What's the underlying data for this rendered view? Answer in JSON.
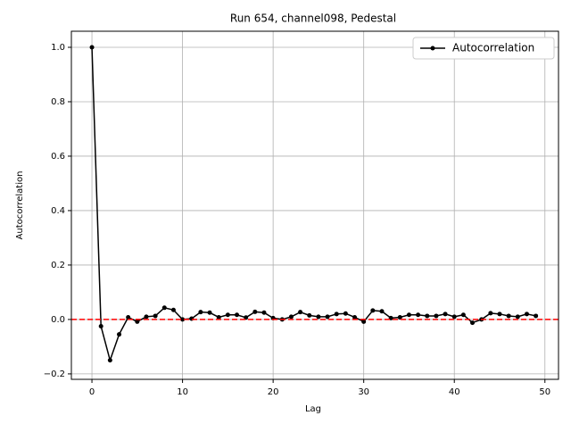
{
  "chart_data": {
    "type": "line",
    "title": "Run 654, channel098, Pedestal",
    "x_label": "Lag",
    "y_label": "Autocorrelation",
    "x": [
      0,
      1,
      2,
      3,
      4,
      5,
      6,
      7,
      8,
      9,
      10,
      11,
      12,
      13,
      14,
      15,
      16,
      17,
      18,
      19,
      20,
      21,
      22,
      23,
      24,
      25,
      26,
      27,
      28,
      29,
      30,
      31,
      32,
      33,
      34,
      35,
      36,
      37,
      38,
      39,
      40,
      41,
      42,
      43,
      44,
      45,
      46,
      47,
      48,
      49
    ],
    "series": [
      {
        "name": "Autocorrelation",
        "color": "#000000",
        "values": [
          1.0,
          -0.025,
          -0.15,
          -0.055,
          0.008,
          -0.008,
          0.01,
          0.013,
          0.043,
          0.035,
          0.0,
          0.003,
          0.027,
          0.025,
          0.008,
          0.017,
          0.017,
          0.007,
          0.028,
          0.025,
          0.005,
          0.0,
          0.01,
          0.027,
          0.015,
          0.01,
          0.01,
          0.02,
          0.022,
          0.008,
          -0.008,
          0.033,
          0.03,
          0.005,
          0.008,
          0.017,
          0.017,
          0.013,
          0.013,
          0.02,
          0.01,
          0.017,
          -0.012,
          0.0,
          0.023,
          0.02,
          0.013,
          0.01,
          0.02,
          0.013
        ]
      }
    ],
    "hline": {
      "value": 0,
      "color": "#ff0000"
    },
    "xlim": [
      -2.27,
      51.5
    ],
    "ylim": [
      -0.22,
      1.059
    ],
    "xticks": [
      0,
      10,
      20,
      30,
      40,
      50
    ],
    "yticks": [
      {
        "value": -0.2,
        "label": "−0.2"
      },
      {
        "value": 0,
        "label": "0.0"
      },
      0.2,
      0.4,
      0.6,
      0.8,
      {
        "value": 1.0,
        "label": "1.0"
      }
    ],
    "grid": true,
    "legend": "upper right"
  }
}
